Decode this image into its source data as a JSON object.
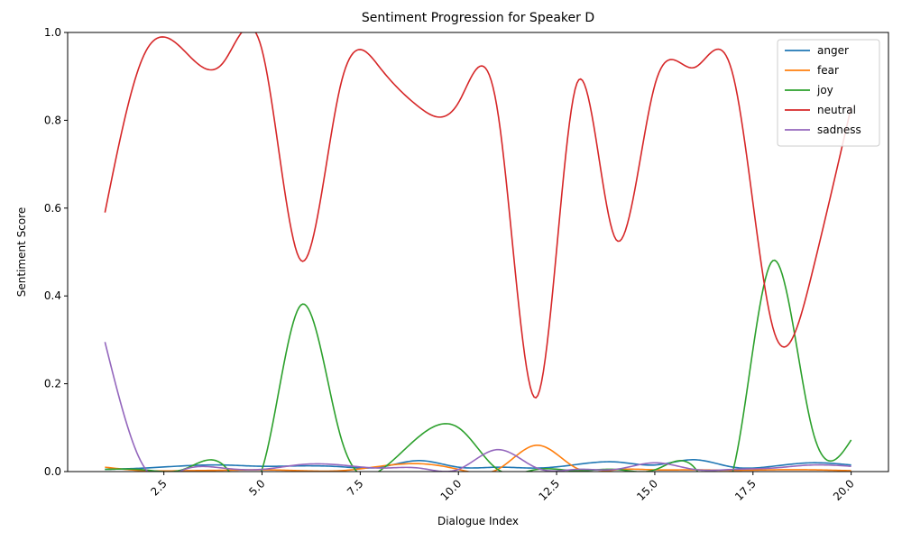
{
  "chart_data": {
    "type": "line",
    "title": "Sentiment Progression for Speaker D",
    "xlabel": "Dialogue Index",
    "ylabel": "Sentiment Score",
    "xlim": [
      0.05,
      20.95
    ],
    "ylim": [
      0,
      1.0
    ],
    "x_ticks": [
      2.5,
      5.0,
      7.5,
      10.0,
      12.5,
      15.0,
      17.5,
      20.0
    ],
    "x_tick_labels": [
      "2.5",
      "5.0",
      "7.5",
      "10.0",
      "12.5",
      "15.0",
      "17.5",
      "20.0"
    ],
    "y_ticks": [
      0.0,
      0.2,
      0.4,
      0.6,
      0.8,
      1.0
    ],
    "y_tick_labels": [
      "0.0",
      "0.2",
      "0.4",
      "0.6",
      "0.8",
      "1.0"
    ],
    "x_tick_rotation": 45,
    "grid": false,
    "legend_position": "top-right",
    "smooth": true,
    "x": [
      1,
      2,
      3,
      4,
      5,
      6,
      7,
      8,
      9,
      10,
      11,
      12,
      13,
      14,
      15,
      16,
      17,
      18,
      19,
      20
    ],
    "series": [
      {
        "name": "anger",
        "color": "#1f77b4",
        "values": [
          0.005,
          0.008,
          0.013,
          0.015,
          0.012,
          0.013,
          0.011,
          0.01,
          0.025,
          0.01,
          0.01,
          0.008,
          0.016,
          0.022,
          0.015,
          0.027,
          0.01,
          0.012,
          0.02,
          0.015
        ]
      },
      {
        "name": "fear",
        "color": "#ff7f0e",
        "values": [
          0.01,
          0.002,
          0.002,
          0.003,
          0.004,
          0.002,
          0.002,
          0.012,
          0.018,
          0.005,
          0.005,
          0.06,
          0.008,
          0.004,
          0.004,
          0.004,
          0.003,
          0.004,
          0.004,
          0.002
        ]
      },
      {
        "name": "joy",
        "color": "#2ca02c",
        "values": [
          0.005,
          0.004,
          0.005,
          0.016,
          0.005,
          0.38,
          0.08,
          0.002,
          0.08,
          0.1,
          0.005,
          0.005,
          0.002,
          0.005,
          0.004,
          0.01,
          0.005,
          0.48,
          0.1,
          0.072
        ]
      },
      {
        "name": "neutral",
        "color": "#d62728",
        "values": [
          0.59,
          0.95,
          0.96,
          0.93,
          0.96,
          0.48,
          0.88,
          0.92,
          0.83,
          0.84,
          0.82,
          0.17,
          0.88,
          0.53,
          0.88,
          0.92,
          0.9,
          0.33,
          0.45,
          0.83
        ]
      },
      {
        "name": "sadness",
        "color": "#9467bd",
        "values": [
          0.295,
          0.01,
          0.004,
          0.008,
          0.005,
          0.016,
          0.015,
          0.008,
          0.008,
          0.005,
          0.05,
          0.008,
          0.005,
          0.005,
          0.02,
          0.005,
          0.005,
          0.008,
          0.015,
          0.012
        ]
      }
    ]
  }
}
